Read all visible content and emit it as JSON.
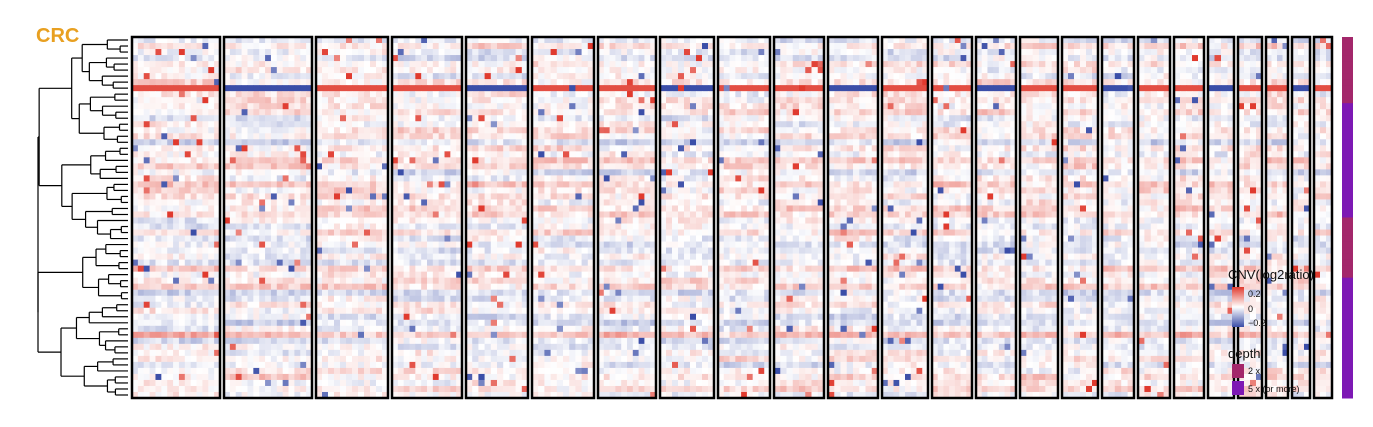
{
  "chart_data": {
    "type": "heatmap",
    "title": "CRC",
    "n_cells": 60,
    "n_chromosome_blocks": 24,
    "block_widths": [
      88,
      88,
      72,
      70,
      62,
      62,
      58,
      54,
      52,
      50,
      50,
      46,
      40,
      40,
      38,
      36,
      32,
      32,
      30,
      26,
      24,
      22,
      18,
      18
    ],
    "x_ticks": [],
    "y_ticks": [],
    "color_scale": {
      "name": "CNV(log2ratio)",
      "min": -0.2,
      "max": 0.2,
      "ticks": [
        "0.2",
        "0",
        "−0.2"
      ],
      "colors": {
        "low": "#3b4ea8",
        "mid": "#ffffff",
        "high": "#e03a2e"
      }
    },
    "depth_legend": {
      "name": "depth",
      "items": [
        {
          "label": "2 x",
          "color": "#a3276b"
        },
        {
          "label": "5 x (or more)",
          "color": "#7d18b4"
        }
      ]
    },
    "row_depth": [
      "2 x",
      "2 x",
      "2 x",
      "2 x",
      "2 x",
      "2 x",
      "2 x",
      "2 x",
      "2 x",
      "2 x",
      "2 x",
      "5 x (or more)",
      "5 x (or more)",
      "5 x (or more)",
      "5 x (or more)",
      "5 x (or more)",
      "5 x (or more)",
      "5 x (or more)",
      "5 x (or more)",
      "5 x (or more)",
      "5 x (or more)",
      "5 x (or more)",
      "5 x (or more)",
      "5 x (or more)",
      "5 x (or more)",
      "5 x (or more)",
      "5 x (or more)",
      "5 x (or more)",
      "5 x (or more)",
      "5 x (or more)",
      "2 x",
      "2 x",
      "2 x",
      "2 x",
      "2 x",
      "2 x",
      "2 x",
      "2 x",
      "2 x",
      "2 x",
      "5 x (or more)",
      "5 x (or more)",
      "5 x (or more)",
      "5 x (or more)",
      "5 x (or more)",
      "5 x (or more)",
      "5 x (or more)",
      "5 x (or more)",
      "5 x (or more)",
      "5 x (or more)",
      "5 x (or more)",
      "5 x (or more)",
      "5 x (or more)",
      "5 x (or more)",
      "5 x (or more)",
      "5 x (or more)",
      "5 x (or more)",
      "5 x (or more)",
      "5 x (or more)",
      "5 x (or more)"
    ],
    "grid": false,
    "legend_position": "right"
  }
}
